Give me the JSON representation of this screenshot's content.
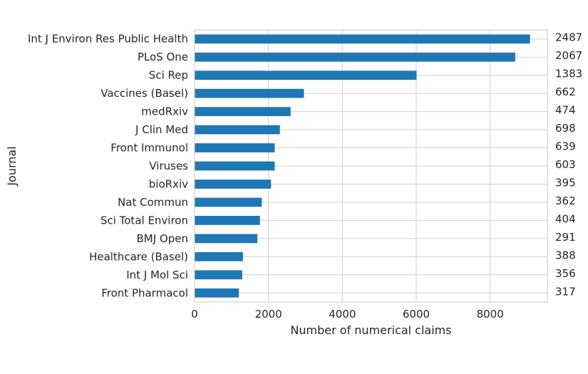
{
  "chart_data": {
    "type": "bar",
    "orientation": "horizontal",
    "categories": [
      "Int J Environ Res Public Health",
      "PLoS One",
      "Sci Rep",
      "Vaccines (Basel)",
      "medRxiv",
      "J Clin Med",
      "Front Immunol",
      "Viruses",
      "bioRxiv",
      "Nat Commun",
      "Sci Total Environ",
      "BMJ Open",
      "Healthcare (Basel)",
      "Int J Mol Sci",
      "Front Pharmacol"
    ],
    "values": [
      9080,
      8680,
      6010,
      2960,
      2600,
      2310,
      2170,
      2170,
      2070,
      1820,
      1770,
      1700,
      1310,
      1290,
      1200
    ],
    "right_labels": [
      "2487",
      "2067",
      "1383",
      "662",
      "474",
      "698",
      "639",
      "603",
      "395",
      "362",
      "404",
      "291",
      "388",
      "356",
      "317"
    ],
    "xlabel": "Number of numerical claims",
    "ylabel": "Journal",
    "xlim": [
      0,
      9550
    ],
    "xticks": [
      0,
      2000,
      4000,
      6000,
      8000
    ],
    "grid": true,
    "bar_color": "#1f77b4"
  }
}
